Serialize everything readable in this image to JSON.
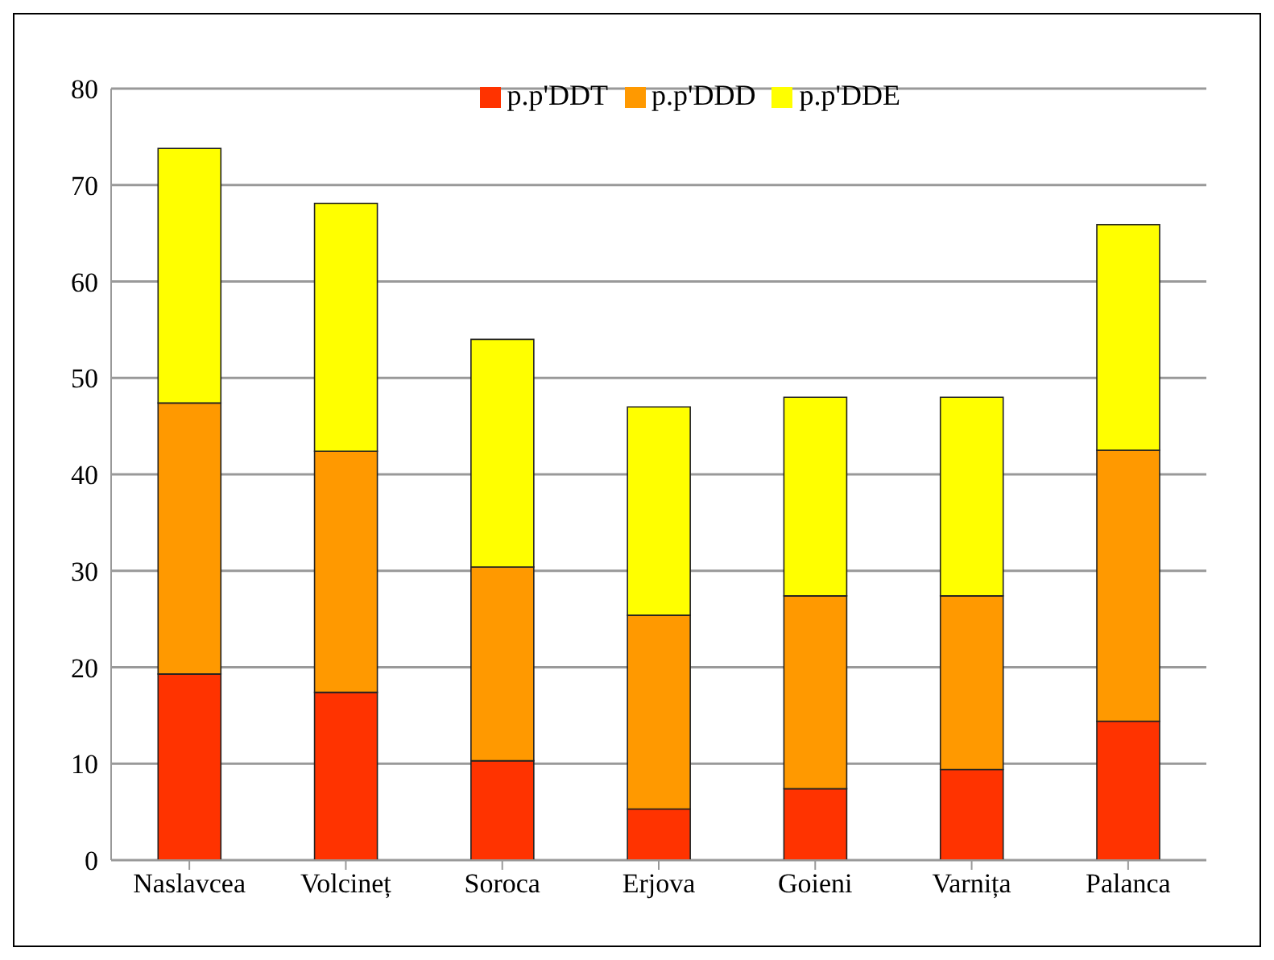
{
  "chart_data": {
    "type": "bar",
    "stacked": true,
    "categories": [
      "Naslavcea",
      "Volcineț",
      "Soroca",
      "Erjova",
      "Goieni",
      "Varnița",
      "Palanca"
    ],
    "series": [
      {
        "name": "p.p'DDT",
        "color": "#ff3300",
        "values": [
          19.3,
          17.4,
          10.3,
          5.3,
          7.4,
          9.4,
          14.4
        ]
      },
      {
        "name": "p.p'DDD",
        "color": "#ff9900",
        "values": [
          28.1,
          25,
          20.1,
          20.1,
          20,
          18,
          28.1
        ]
      },
      {
        "name": "p.p'DDE",
        "color": "#ffff00",
        "values": [
          26.4,
          25.7,
          23.6,
          21.6,
          20.6,
          20.6,
          23.4
        ]
      }
    ],
    "ylim": [
      0,
      80
    ],
    "yticks": [
      0,
      10,
      20,
      30,
      40,
      50,
      60,
      70,
      80
    ],
    "grid": "y",
    "legend": "top right"
  }
}
